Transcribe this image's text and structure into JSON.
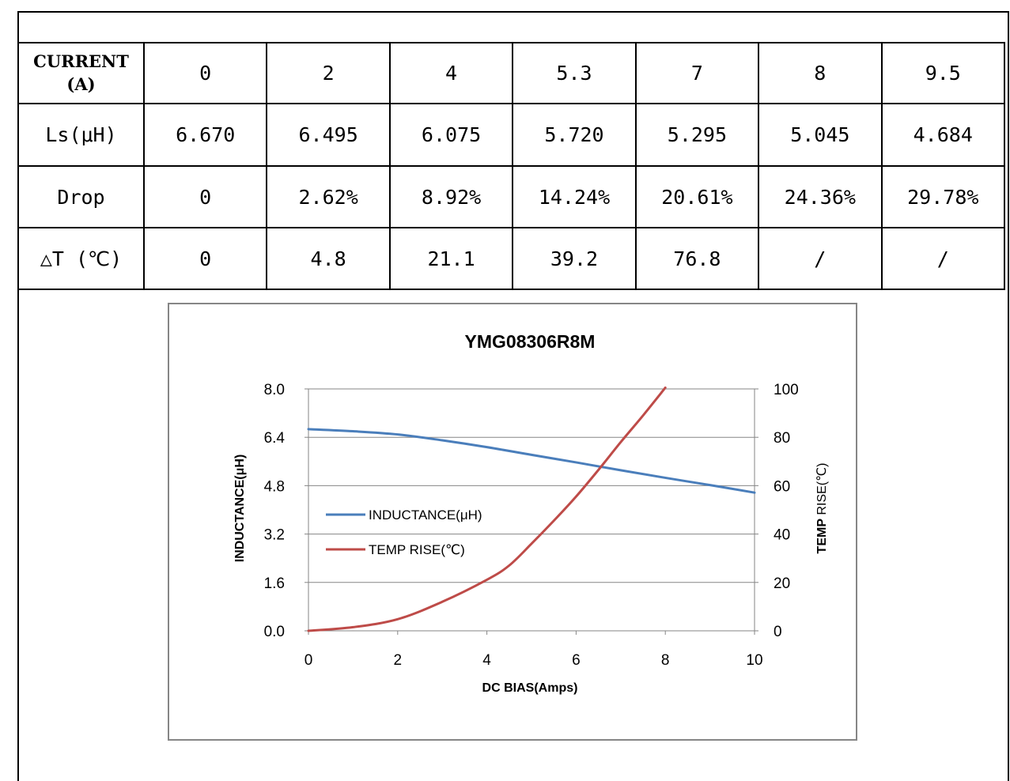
{
  "table": {
    "rows": [
      {
        "label": "CURRENT\n(A)",
        "cells": [
          "0",
          "2",
          "4",
          "5.3",
          "7",
          "8",
          "9.5"
        ]
      },
      {
        "label": "Ls(μH)",
        "cells": [
          "6.670",
          "6.495",
          "6.075",
          "5.720",
          "5.295",
          "5.045",
          "4.684"
        ]
      },
      {
        "label": "Drop",
        "cells": [
          "0",
          "2.62%",
          "8.92%",
          "14.24%",
          "20.61%",
          "24.36%",
          "29.78%"
        ]
      },
      {
        "label": "△T (℃)",
        "cells": [
          "0",
          "4.8",
          "21.1",
          "39.2",
          "76.8",
          "/",
          "/"
        ]
      }
    ]
  },
  "chart_data": {
    "type": "line",
    "title": "YMG08306R8M",
    "xlabel": "DC BIAS(Amps)",
    "ylabel": "INDUCTANCE(μH)",
    "y2label_bold": "TEMP",
    "y2label_rest": " RISE(℃)",
    "xlim": [
      0,
      10
    ],
    "ylim": [
      0,
      8
    ],
    "y2lim": [
      0,
      100
    ],
    "xticks": [
      "0",
      "2",
      "4",
      "6",
      "8",
      "10"
    ],
    "yticks": [
      "0.0",
      "1.6",
      "3.2",
      "4.8",
      "6.4",
      "8.0"
    ],
    "y2ticks": [
      "0",
      "20",
      "40",
      "60",
      "80",
      "100"
    ],
    "grid": "horizontal",
    "legend_position": "left-middle",
    "series": [
      {
        "name": "INDUCTANCE(μH)",
        "axis": "left",
        "color": "#4a7ebb",
        "x": [
          0,
          1,
          2,
          3,
          4,
          5,
          6,
          7,
          8,
          9,
          10
        ],
        "y": [
          6.67,
          6.6,
          6.495,
          6.3,
          6.075,
          5.82,
          5.57,
          5.31,
          5.06,
          4.82,
          4.57
        ]
      },
      {
        "name": "TEMP RISE(℃)",
        "axis": "right",
        "color": "#be4b48",
        "x": [
          0,
          1,
          2,
          3,
          4,
          4.5,
          5,
          5.5,
          6,
          6.5,
          7,
          7.5,
          8
        ],
        "y": [
          0,
          1.5,
          4.8,
          12,
          21.1,
          27,
          36,
          45.5,
          55.5,
          66.5,
          78,
          89,
          100.5
        ]
      }
    ]
  }
}
